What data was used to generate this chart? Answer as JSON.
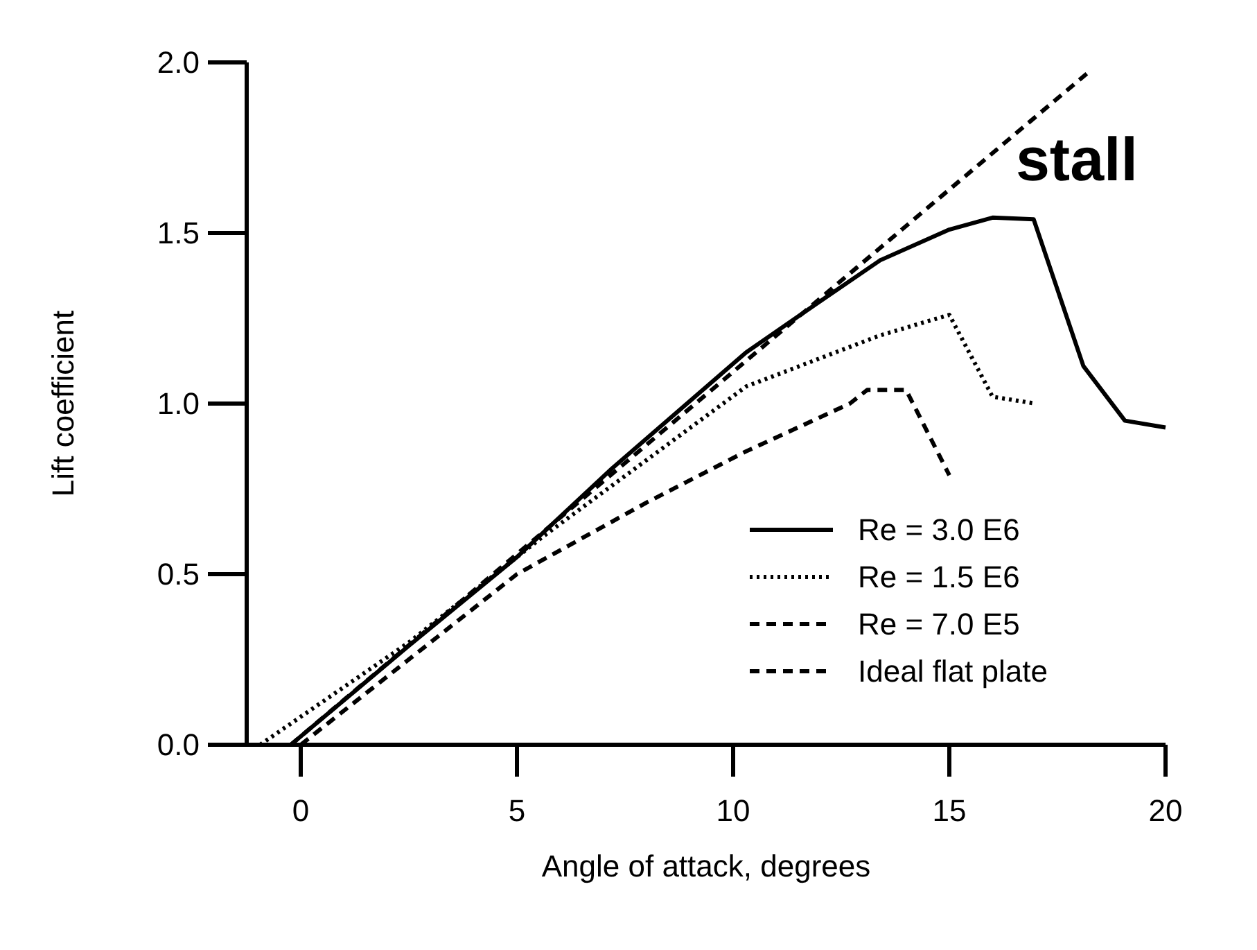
{
  "chart_data": {
    "type": "line",
    "xlabel": "Angle of attack, degrees",
    "ylabel": "Lift coefficient",
    "xlim": [
      -1.25,
      20
    ],
    "xticks": [
      0,
      5,
      10,
      15,
      20
    ],
    "ylim": [
      0,
      2
    ],
    "yticks": [
      {
        "value": 0,
        "label": "0.0"
      },
      {
        "value": 0.5,
        "label": "0.5"
      },
      {
        "value": 1,
        "label": "1.0"
      },
      {
        "value": 1.5,
        "label": "1.5"
      },
      {
        "value": 2,
        "label": "2.0"
      }
    ],
    "grid": false,
    "legend": "bottom right",
    "marker": "none",
    "annotations": [
      "stall"
    ],
    "series": [
      {
        "name": "Re = 3.0 E6",
        "color": "#000000",
        "line_style": "solid",
        "x": [
          -0.23,
          2.5,
          5,
          7.2,
          10.3,
          11.9,
          13.4,
          15,
          16,
          16.95,
          18.1,
          19.06,
          20
        ],
        "values": [
          0,
          0.29,
          0.55,
          0.81,
          1.15,
          1.29,
          1.42,
          1.51,
          1.545,
          1.54,
          1.11,
          0.95,
          0.93
        ]
      },
      {
        "name": "Re = 1.5 E6",
        "color": "#000000",
        "line_style": "dotted",
        "x": [
          -0.94,
          2.5,
          5.6,
          10.3,
          13.4,
          15,
          16,
          17
        ],
        "values": [
          0,
          0.3,
          0.61,
          1.05,
          1.2,
          1.26,
          1.02,
          1.0
        ]
      },
      {
        "name": "Re = 7.0 E5",
        "color": "#000000",
        "line_style": "dashed",
        "x": [
          0,
          5,
          8,
          10.3,
          12.7,
          13.1,
          14,
          15
        ],
        "values": [
          0,
          0.5,
          0.71,
          0.86,
          1.0,
          1.04,
          1.04,
          0.79
        ]
      },
      {
        "name": "Ideal flat plate",
        "color": "#000000",
        "line_style": "dashed",
        "x": [
          -0.23,
          18.3
        ],
        "values": [
          0,
          1.98
        ]
      }
    ]
  }
}
